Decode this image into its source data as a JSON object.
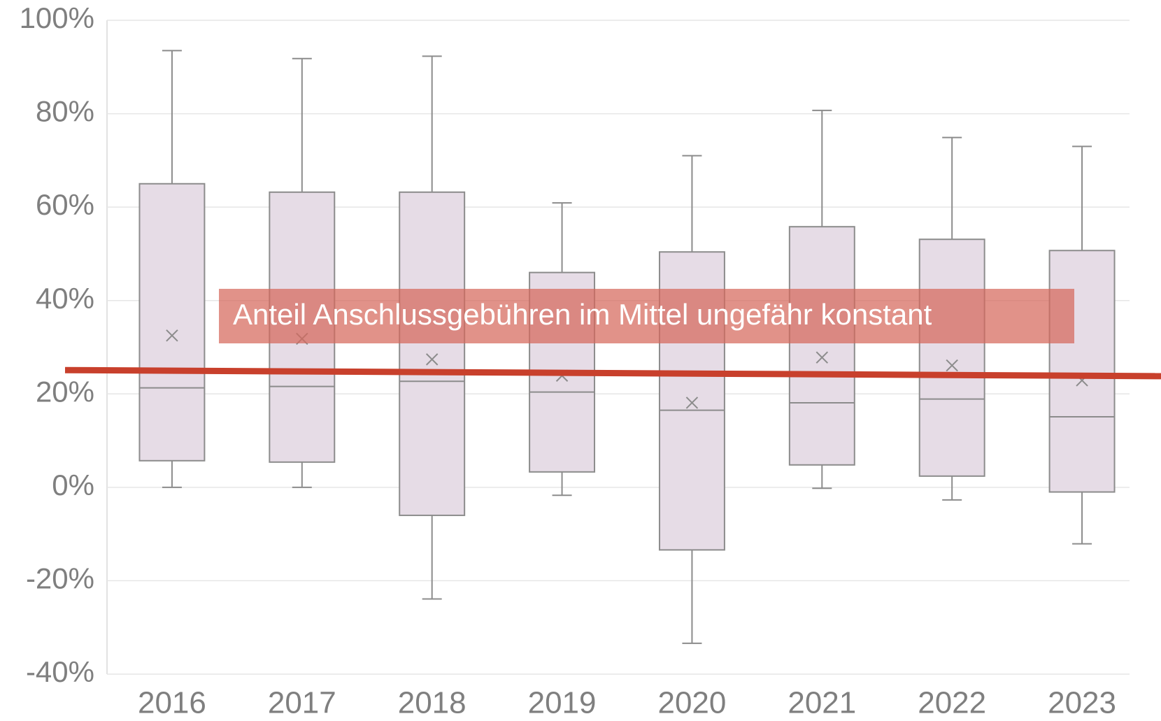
{
  "chart_data": {
    "type": "box",
    "categories": [
      "2016",
      "2017",
      "2018",
      "2019",
      "2020",
      "2021",
      "2022",
      "2023"
    ],
    "series": [
      {
        "color": "#e6dce6",
        "min": [
          0,
          0,
          -23.9,
          -1.7,
          -33.4,
          -0.2,
          -2.7,
          -12.1
        ],
        "q1": [
          5.7,
          5.4,
          -6.0,
          3.3,
          -13.4,
          4.8,
          2.4,
          -1.0
        ],
        "median": [
          21.3,
          21.6,
          22.7,
          20.4,
          16.5,
          18.1,
          18.9,
          15.1
        ],
        "q3": [
          65,
          63.2,
          63.2,
          46,
          50.4,
          55.8,
          53.1,
          50.7
        ],
        "max": [
          93.5,
          91.8,
          92.3,
          60.9,
          71,
          80.7,
          74.9,
          73
        ],
        "mean": [
          32.5,
          31.8,
          27.4,
          23.9,
          18.1,
          27.8,
          26.1,
          22.9
        ]
      }
    ],
    "trend_line": {
      "values": [
        25.1,
        23.8
      ],
      "color": "#c8402c"
    },
    "annotation": "Anteil Anschlussgebühren im Mittel ungefähr konstant",
    "ylim": [
      -40,
      100
    ],
    "yticks": [
      {
        "value": -40,
        "label": "-40%"
      },
      {
        "value": -20,
        "label": "-20%"
      },
      {
        "value": 0,
        "label": "0%"
      },
      {
        "value": 20,
        "label": "20%"
      },
      {
        "value": 40,
        "label": "40%"
      },
      {
        "value": 60,
        "label": "60%"
      },
      {
        "value": 80,
        "label": "80%"
      },
      {
        "value": 100,
        "label": "100%"
      }
    ],
    "grid": true
  }
}
